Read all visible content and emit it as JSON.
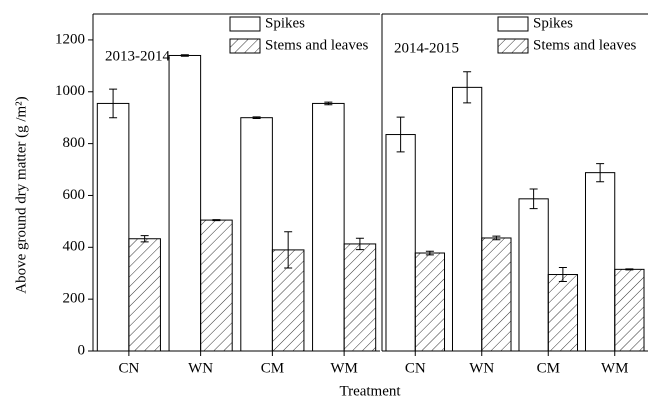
{
  "chart_data": [
    {
      "type": "bar",
      "annotation": "2013-2014",
      "y_label": "Above ground dry matter (g /m²)",
      "x_label": "Treatment",
      "categories": [
        "CN",
        "WN",
        "CM",
        "WM"
      ],
      "series": [
        {
          "name": "Spikes",
          "color": "#ffffff",
          "pattern": "none",
          "values": [
            955,
            1140,
            900,
            955
          ],
          "errors": [
            55,
            3,
            3,
            5
          ]
        },
        {
          "name": "Stems and leaves",
          "color": "#ffffff",
          "pattern": "hatch",
          "values": [
            433,
            505,
            390,
            413
          ],
          "errors": [
            12,
            2,
            70,
            22
          ]
        }
      ],
      "ylim": [
        0,
        1300
      ],
      "yticks": [
        0,
        200,
        400,
        600,
        800,
        1000,
        1200
      ],
      "legend": "top-right"
    },
    {
      "type": "bar",
      "annotation": "2014-2015",
      "categories": [
        "CN",
        "WN",
        "CM",
        "WM"
      ],
      "series": [
        {
          "name": "Spikes",
          "color": "#ffffff",
          "pattern": "none",
          "values": [
            835,
            1017,
            587,
            688
          ],
          "errors": [
            67,
            60,
            38,
            35
          ]
        },
        {
          "name": "Stems and leaves",
          "color": "#ffffff",
          "pattern": "hatch",
          "values": [
            378,
            436,
            295,
            315
          ],
          "errors": [
            7,
            7,
            27,
            2
          ]
        }
      ],
      "ylim": [
        0,
        1300
      ],
      "legend": "top-right"
    }
  ]
}
